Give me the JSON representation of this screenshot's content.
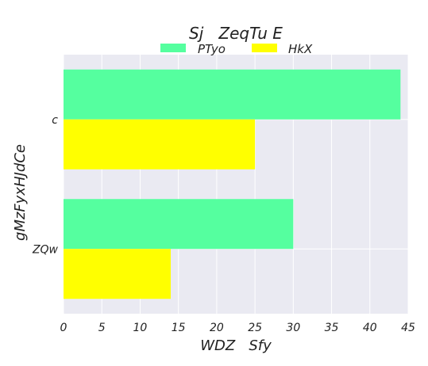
{
  "chart_data": {
    "type": "bar",
    "orientation": "horizontal",
    "title": "Sj   ZeqTu E",
    "xlabel": "WDZ   Sfy",
    "ylabel": "gMzFyxHJdCe",
    "categories": [
      "c",
      "ZQw"
    ],
    "series": [
      {
        "name": "PTyo",
        "color": "#55ff9f",
        "values": [
          44,
          30
        ]
      },
      {
        "name": "HkX",
        "color": "#ffff00",
        "values": [
          25,
          14
        ]
      }
    ],
    "xlim": [
      0,
      45
    ],
    "xticks": [
      0,
      5,
      10,
      15,
      20,
      25,
      30,
      35,
      40,
      45
    ],
    "grid": true,
    "legend_position": "top-center",
    "background_color": "#eaeaf2"
  }
}
